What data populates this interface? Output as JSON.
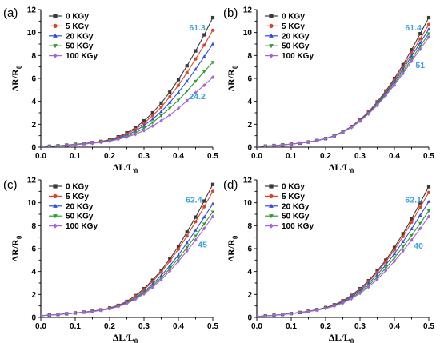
{
  "figure": {
    "colors": {
      "0 KGy": "#3b3b3b",
      "5 KGy": "#d9462b",
      "20 KGy": "#2f50d8",
      "50 KGy": "#2e9c2e",
      "100 KGy": "#a463d6",
      "annotation": "#3ea2df"
    },
    "markers": {
      "0 KGy": "square",
      "5 KGy": "circle",
      "20 KGy": "triangle-up",
      "50 KGy": "triangle-down",
      "100 KGy": "diamond"
    }
  },
  "chart_data": [
    {
      "panel_label": "(a)",
      "type": "line",
      "xlabel_main": "ΔL/L",
      "xlabel_sub": "0",
      "ylabel_main": "ΔR/R",
      "ylabel_sub": "0",
      "xlim": [
        0,
        0.5
      ],
      "ylim": [
        0,
        12
      ],
      "xticks": [
        "0.0",
        "0.1",
        "0.2",
        "0.3",
        "0.4",
        "0.5"
      ],
      "yticks": [
        "0",
        "2",
        "4",
        "6",
        "8",
        "10",
        "12"
      ],
      "legend": "top-left",
      "x": [
        0.0,
        0.025,
        0.05,
        0.075,
        0.1,
        0.125,
        0.15,
        0.175,
        0.2,
        0.225,
        0.25,
        0.275,
        0.3,
        0.325,
        0.35,
        0.375,
        0.4,
        0.425,
        0.45,
        0.475,
        0.5
      ],
      "series": [
        {
          "name": "0 KGy",
          "values": [
            0.05,
            0.08,
            0.12,
            0.18,
            0.25,
            0.32,
            0.4,
            0.5,
            0.65,
            0.9,
            1.25,
            1.7,
            2.3,
            3.0,
            3.85,
            4.8,
            5.9,
            7.1,
            8.4,
            9.8,
            11.3
          ]
        },
        {
          "name": "5 KGy",
          "values": [
            0.05,
            0.08,
            0.12,
            0.18,
            0.24,
            0.31,
            0.39,
            0.48,
            0.62,
            0.85,
            1.15,
            1.55,
            2.1,
            2.75,
            3.5,
            4.4,
            5.4,
            6.5,
            7.7,
            8.9,
            10.2
          ]
        },
        {
          "name": "20 KGy",
          "values": [
            0.05,
            0.08,
            0.12,
            0.17,
            0.23,
            0.3,
            0.37,
            0.46,
            0.58,
            0.8,
            1.05,
            1.4,
            1.9,
            2.45,
            3.1,
            3.9,
            4.8,
            5.75,
            6.8,
            7.9,
            9.0
          ]
        },
        {
          "name": "50 KGy",
          "values": [
            0.05,
            0.08,
            0.11,
            0.16,
            0.22,
            0.28,
            0.35,
            0.44,
            0.55,
            0.72,
            0.95,
            1.25,
            1.65,
            2.15,
            2.75,
            3.4,
            4.1,
            4.9,
            5.75,
            6.6,
            7.4
          ]
        },
        {
          "name": "100 KGy",
          "values": [
            0.05,
            0.08,
            0.11,
            0.16,
            0.21,
            0.27,
            0.34,
            0.42,
            0.52,
            0.68,
            0.88,
            1.12,
            1.45,
            1.85,
            2.3,
            2.8,
            3.4,
            4.05,
            4.75,
            5.4,
            6.1
          ]
        }
      ],
      "annotations": [
        {
          "text": "61.3",
          "x": 0.455,
          "y": 10.2
        },
        {
          "text": "24.2",
          "x": 0.455,
          "y": 4.2
        }
      ]
    },
    {
      "panel_label": "(b)",
      "type": "line",
      "xlabel_main": "ΔL/L",
      "xlabel_sub": "0",
      "ylabel_main": "ΔR/R",
      "ylabel_sub": "0",
      "xlim": [
        0,
        0.5
      ],
      "ylim": [
        0,
        12
      ],
      "xticks": [
        "0.0",
        "0.1",
        "0.2",
        "0.3",
        "0.4",
        "0.5"
      ],
      "yticks": [
        "0",
        "2",
        "4",
        "6",
        "8",
        "10",
        "12"
      ],
      "legend": "top-left",
      "x": [
        0.0,
        0.025,
        0.05,
        0.075,
        0.1,
        0.125,
        0.15,
        0.175,
        0.2,
        0.225,
        0.25,
        0.275,
        0.3,
        0.325,
        0.35,
        0.375,
        0.4,
        0.425,
        0.45,
        0.475,
        0.5
      ],
      "series": [
        {
          "name": "0 KGy",
          "values": [
            0.05,
            0.09,
            0.14,
            0.2,
            0.27,
            0.35,
            0.45,
            0.58,
            0.75,
            1.0,
            1.35,
            1.8,
            2.4,
            3.1,
            3.95,
            4.9,
            6.0,
            7.2,
            8.5,
            9.9,
            11.3
          ]
        },
        {
          "name": "5 KGy",
          "values": [
            0.05,
            0.09,
            0.14,
            0.2,
            0.27,
            0.35,
            0.45,
            0.58,
            0.75,
            1.0,
            1.35,
            1.8,
            2.38,
            3.08,
            3.9,
            4.82,
            5.85,
            7.0,
            8.2,
            9.45,
            10.7
          ]
        },
        {
          "name": "20 KGy",
          "values": [
            0.05,
            0.09,
            0.14,
            0.2,
            0.27,
            0.35,
            0.45,
            0.58,
            0.75,
            1.0,
            1.33,
            1.78,
            2.35,
            3.02,
            3.82,
            4.72,
            5.72,
            6.8,
            7.95,
            9.1,
            10.3
          ]
        },
        {
          "name": "50 KGy",
          "values": [
            0.05,
            0.09,
            0.14,
            0.2,
            0.27,
            0.35,
            0.45,
            0.57,
            0.74,
            0.98,
            1.31,
            1.75,
            2.3,
            2.96,
            3.74,
            4.6,
            5.55,
            6.6,
            7.7,
            8.8,
            9.9
          ]
        },
        {
          "name": "100 KGy",
          "values": [
            0.05,
            0.09,
            0.14,
            0.2,
            0.27,
            0.35,
            0.45,
            0.57,
            0.73,
            0.97,
            1.3,
            1.72,
            2.26,
            2.9,
            3.65,
            4.5,
            5.42,
            6.42,
            7.5,
            8.55,
            9.6
          ]
        }
      ],
      "annotations": [
        {
          "text": "61.4",
          "x": 0.455,
          "y": 10.2
        },
        {
          "text": "51",
          "x": 0.475,
          "y": 6.9
        }
      ]
    },
    {
      "panel_label": "(c)",
      "type": "line",
      "xlabel_main": "ΔL/L",
      "xlabel_sub": "0",
      "ylabel_main": "ΔR/R",
      "ylabel_sub": "0",
      "xlim": [
        0,
        0.5
      ],
      "ylim": [
        0,
        12
      ],
      "xticks": [
        "0.0",
        "0.1",
        "0.2",
        "0.3",
        "0.4",
        "0.5"
      ],
      "yticks": [
        "0",
        "2",
        "4",
        "6",
        "8",
        "10",
        "12"
      ],
      "legend": "top-left",
      "x": [
        0.0,
        0.025,
        0.05,
        0.075,
        0.1,
        0.125,
        0.15,
        0.175,
        0.2,
        0.225,
        0.25,
        0.275,
        0.3,
        0.325,
        0.35,
        0.375,
        0.4,
        0.425,
        0.45,
        0.475,
        0.5
      ],
      "series": [
        {
          "name": "0 KGy",
          "values": [
            0.15,
            0.2,
            0.26,
            0.32,
            0.39,
            0.46,
            0.55,
            0.66,
            0.82,
            1.05,
            1.4,
            1.9,
            2.5,
            3.25,
            4.1,
            5.1,
            6.2,
            7.45,
            8.75,
            10.15,
            11.6
          ]
        },
        {
          "name": "5 KGy",
          "values": [
            0.15,
            0.2,
            0.26,
            0.32,
            0.39,
            0.46,
            0.55,
            0.66,
            0.81,
            1.03,
            1.37,
            1.84,
            2.42,
            3.12,
            3.95,
            4.9,
            5.95,
            7.1,
            8.35,
            9.65,
            11.0
          ]
        },
        {
          "name": "20 KGy",
          "values": [
            0.15,
            0.2,
            0.26,
            0.32,
            0.38,
            0.45,
            0.53,
            0.64,
            0.78,
            1.0,
            1.3,
            1.72,
            2.25,
            2.9,
            3.65,
            4.5,
            5.45,
            6.5,
            7.6,
            8.75,
            9.9
          ]
        },
        {
          "name": "50 KGy",
          "values": [
            0.15,
            0.2,
            0.26,
            0.31,
            0.37,
            0.44,
            0.52,
            0.62,
            0.76,
            0.96,
            1.25,
            1.65,
            2.15,
            2.75,
            3.45,
            4.25,
            5.15,
            6.1,
            7.1,
            8.15,
            9.2
          ]
        },
        {
          "name": "100 KGy",
          "values": [
            0.15,
            0.2,
            0.25,
            0.31,
            0.37,
            0.44,
            0.51,
            0.61,
            0.74,
            0.94,
            1.21,
            1.58,
            2.05,
            2.62,
            3.28,
            4.05,
            4.9,
            5.8,
            6.75,
            7.75,
            8.8
          ]
        }
      ],
      "annotations": [
        {
          "text": "62.4",
          "x": 0.445,
          "y": 10.0
        },
        {
          "text": "45",
          "x": 0.47,
          "y": 6.1
        }
      ]
    },
    {
      "panel_label": "(d)",
      "type": "line",
      "xlabel_main": "ΔL/L",
      "xlabel_sub": "0",
      "ylabel_main": "ΔR/R",
      "ylabel_sub": "0",
      "xlim": [
        0,
        0.5
      ],
      "ylim": [
        0,
        12
      ],
      "xticks": [
        "0.0",
        "0.1",
        "0.2",
        "0.3",
        "0.4",
        "0.5"
      ],
      "yticks": [
        "0",
        "2",
        "4",
        "6",
        "8",
        "10",
        "12"
      ],
      "legend": "top-left",
      "x": [
        0.0,
        0.025,
        0.05,
        0.075,
        0.1,
        0.125,
        0.15,
        0.175,
        0.2,
        0.225,
        0.25,
        0.275,
        0.3,
        0.325,
        0.35,
        0.375,
        0.4,
        0.425,
        0.45,
        0.475,
        0.5
      ],
      "series": [
        {
          "name": "0 KGy",
          "values": [
            0.08,
            0.13,
            0.19,
            0.26,
            0.34,
            0.43,
            0.54,
            0.68,
            0.86,
            1.1,
            1.45,
            1.92,
            2.5,
            3.2,
            4.05,
            5.0,
            6.1,
            7.3,
            8.6,
            10.0,
            11.4
          ]
        },
        {
          "name": "5 KGy",
          "values": [
            0.08,
            0.13,
            0.19,
            0.26,
            0.34,
            0.43,
            0.54,
            0.67,
            0.85,
            1.08,
            1.42,
            1.87,
            2.44,
            3.12,
            3.92,
            4.85,
            5.9,
            7.05,
            8.3,
            9.6,
            10.9
          ]
        },
        {
          "name": "20 KGy",
          "values": [
            0.08,
            0.13,
            0.19,
            0.26,
            0.34,
            0.43,
            0.53,
            0.66,
            0.83,
            1.05,
            1.37,
            1.8,
            2.33,
            2.97,
            3.72,
            4.58,
            5.55,
            6.6,
            7.72,
            8.9,
            10.1
          ]
        },
        {
          "name": "50 KGy",
          "values": [
            0.08,
            0.13,
            0.19,
            0.26,
            0.33,
            0.42,
            0.52,
            0.64,
            0.8,
            1.01,
            1.3,
            1.7,
            2.2,
            2.8,
            3.5,
            4.3,
            5.2,
            6.15,
            7.15,
            8.2,
            9.3
          ]
        },
        {
          "name": "100 KGy",
          "values": [
            0.08,
            0.13,
            0.19,
            0.25,
            0.33,
            0.41,
            0.51,
            0.63,
            0.78,
            0.98,
            1.25,
            1.63,
            2.1,
            2.66,
            3.32,
            4.07,
            4.9,
            5.8,
            6.75,
            7.75,
            8.8
          ]
        }
      ],
      "annotations": [
        {
          "text": "62.1",
          "x": 0.455,
          "y": 10.0
        },
        {
          "text": "40",
          "x": 0.47,
          "y": 6.0
        }
      ]
    }
  ]
}
